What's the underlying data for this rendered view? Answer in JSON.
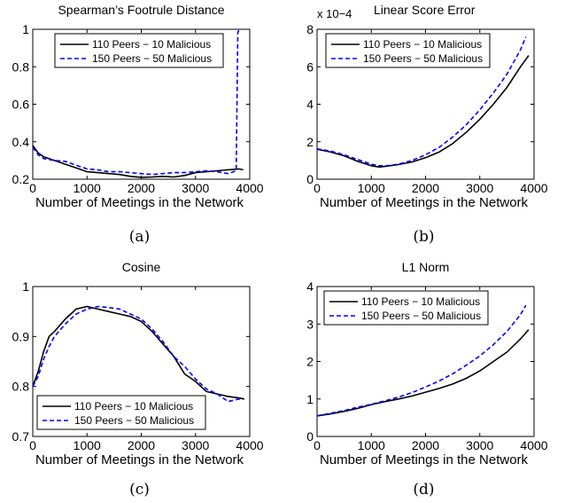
{
  "chart_data": [
    {
      "type": "line",
      "title": "Spearman’s Footrule Distance",
      "title_exponent": "",
      "xlabel": "Number of Meetings in the Network",
      "ylabel": "",
      "subfigure_label": "(a)",
      "xlim": [
        0,
        4000
      ],
      "ylim": [
        0.2,
        1
      ],
      "xticks": [
        "0",
        "1000",
        "2000",
        "3000",
        "4000"
      ],
      "yticks": [
        "0.2",
        "0.4",
        "0.6",
        "0.8",
        "1"
      ],
      "legend_position": "top",
      "series": [
        {
          "name": "110 Peers − 10 Malicious",
          "color": "#000000",
          "style": "solid",
          "x": [
            0,
            100,
            200,
            400,
            600,
            800,
            1000,
            1200,
            1400,
            1600,
            1800,
            2000,
            2200,
            2400,
            2600,
            2800,
            3000,
            3200,
            3400,
            3600,
            3800,
            3880
          ],
          "y": [
            0.38,
            0.34,
            0.32,
            0.3,
            0.28,
            0.26,
            0.24,
            0.235,
            0.23,
            0.225,
            0.215,
            0.21,
            0.212,
            0.215,
            0.212,
            0.22,
            0.235,
            0.24,
            0.245,
            0.25,
            0.255,
            0.25
          ]
        },
        {
          "name": "150 Peers − 50 Malicious",
          "color": "#0000ff",
          "style": "dashed",
          "x": [
            0,
            100,
            200,
            400,
            600,
            800,
            1000,
            1200,
            1400,
            1600,
            1800,
            2000,
            2200,
            2400,
            2600,
            2800,
            3000,
            3200,
            3400,
            3600,
            3750,
            3780,
            3800
          ],
          "y": [
            0.37,
            0.33,
            0.31,
            0.3,
            0.295,
            0.275,
            0.255,
            0.25,
            0.24,
            0.24,
            0.235,
            0.23,
            0.225,
            0.23,
            0.235,
            0.235,
            0.24,
            0.245,
            0.24,
            0.23,
            0.245,
            0.98,
            1.0
          ]
        }
      ]
    },
    {
      "type": "line",
      "title": "Linear Score Error",
      "title_exponent": "x 10−4",
      "xlabel": "Number of Meetings in the Network",
      "ylabel": "",
      "subfigure_label": "(b)",
      "xlim": [
        0,
        4000
      ],
      "ylim": [
        0,
        8
      ],
      "xticks": [
        "0",
        "1000",
        "2000",
        "3000",
        "4000"
      ],
      "yticks": [
        "0",
        "2",
        "4",
        "6",
        "8"
      ],
      "legend_position": "top-right",
      "series": [
        {
          "name": "110 Peers − 10 Malicious",
          "color": "#000000",
          "style": "solid",
          "x": [
            0,
            250,
            500,
            750,
            1000,
            1150,
            1300,
            1500,
            1750,
            2000,
            2250,
            2500,
            2750,
            3000,
            3250,
            3500,
            3750,
            3900
          ],
          "y": [
            1.6,
            1.45,
            1.25,
            0.95,
            0.72,
            0.65,
            0.7,
            0.78,
            0.92,
            1.15,
            1.45,
            1.9,
            2.5,
            3.2,
            4.0,
            4.9,
            6.0,
            6.6
          ]
        },
        {
          "name": "150 Peers − 50 Malicious",
          "color": "#0000ff",
          "style": "dashed",
          "x": [
            0,
            250,
            500,
            750,
            1000,
            1150,
            1300,
            1500,
            1750,
            2000,
            2250,
            2500,
            2750,
            3000,
            3250,
            3500,
            3750,
            3850
          ],
          "y": [
            1.62,
            1.5,
            1.3,
            1.05,
            0.8,
            0.72,
            0.72,
            0.8,
            1.0,
            1.3,
            1.7,
            2.25,
            2.9,
            3.7,
            4.6,
            5.6,
            6.9,
            7.6
          ]
        }
      ]
    },
    {
      "type": "line",
      "title": "Cosine",
      "title_exponent": "",
      "xlabel": "Number of Meetings in the Network",
      "ylabel": "",
      "subfigure_label": "(c)",
      "xlim": [
        0,
        4000
      ],
      "ylim": [
        0.7,
        1
      ],
      "xticks": [
        "0",
        "1000",
        "2000",
        "3000",
        "4000"
      ],
      "yticks": [
        "0.7",
        "0.8",
        "0.9",
        "1"
      ],
      "legend_position": "bottom",
      "series": [
        {
          "name": "110 Peers − 10 Malicious",
          "color": "#000000",
          "style": "solid",
          "x": [
            0,
            100,
            200,
            300,
            400,
            600,
            800,
            1000,
            1200,
            1400,
            1600,
            1800,
            2000,
            2200,
            2400,
            2600,
            2800,
            3000,
            3200,
            3400,
            3600,
            3800,
            3900
          ],
          "y": [
            0.8,
            0.83,
            0.87,
            0.9,
            0.91,
            0.935,
            0.955,
            0.96,
            0.955,
            0.95,
            0.945,
            0.94,
            0.93,
            0.91,
            0.885,
            0.86,
            0.825,
            0.81,
            0.79,
            0.785,
            0.78,
            0.777,
            0.775
          ]
        },
        {
          "name": "150 Peers − 50 Malicious",
          "color": "#0000ff",
          "style": "dashed",
          "x": [
            0,
            100,
            200,
            300,
            400,
            600,
            800,
            1000,
            1200,
            1400,
            1600,
            1800,
            2000,
            2200,
            2400,
            2600,
            2800,
            3000,
            3200,
            3400,
            3600,
            3800,
            3850
          ],
          "y": [
            0.8,
            0.82,
            0.855,
            0.88,
            0.9,
            0.925,
            0.945,
            0.955,
            0.96,
            0.958,
            0.955,
            0.945,
            0.935,
            0.915,
            0.89,
            0.86,
            0.84,
            0.815,
            0.795,
            0.785,
            0.77,
            0.775,
            0.775
          ]
        }
      ]
    },
    {
      "type": "line",
      "title": "L1 Norm",
      "title_exponent": "",
      "xlabel": "Number of Meetings in the Network",
      "ylabel": "",
      "subfigure_label": "(d)",
      "xlim": [
        0,
        4000
      ],
      "ylim": [
        0,
        4
      ],
      "xticks": [
        "0",
        "1000",
        "2000",
        "3000",
        "4000"
      ],
      "yticks": [
        "0",
        "1",
        "2",
        "3",
        "4"
      ],
      "legend_position": "top-right",
      "series": [
        {
          "name": "110 Peers − 10 Malicious",
          "color": "#000000",
          "style": "solid",
          "x": [
            0,
            250,
            500,
            750,
            1000,
            1250,
            1500,
            1750,
            2000,
            2250,
            2500,
            2750,
            3000,
            3250,
            3500,
            3750,
            3900
          ],
          "y": [
            0.55,
            0.6,
            0.67,
            0.75,
            0.85,
            0.93,
            1.0,
            1.08,
            1.18,
            1.28,
            1.4,
            1.55,
            1.75,
            2.0,
            2.25,
            2.6,
            2.85
          ]
        },
        {
          "name": "150 Peers − 50 Malicious",
          "color": "#0000ff",
          "style": "dashed",
          "x": [
            0,
            250,
            500,
            750,
            1000,
            1250,
            1500,
            1750,
            2000,
            2250,
            2500,
            2750,
            3000,
            3250,
            3500,
            3750,
            3850
          ],
          "y": [
            0.55,
            0.62,
            0.69,
            0.78,
            0.86,
            0.95,
            1.05,
            1.17,
            1.32,
            1.48,
            1.67,
            1.9,
            2.15,
            2.45,
            2.8,
            3.25,
            3.5
          ]
        }
      ]
    }
  ]
}
